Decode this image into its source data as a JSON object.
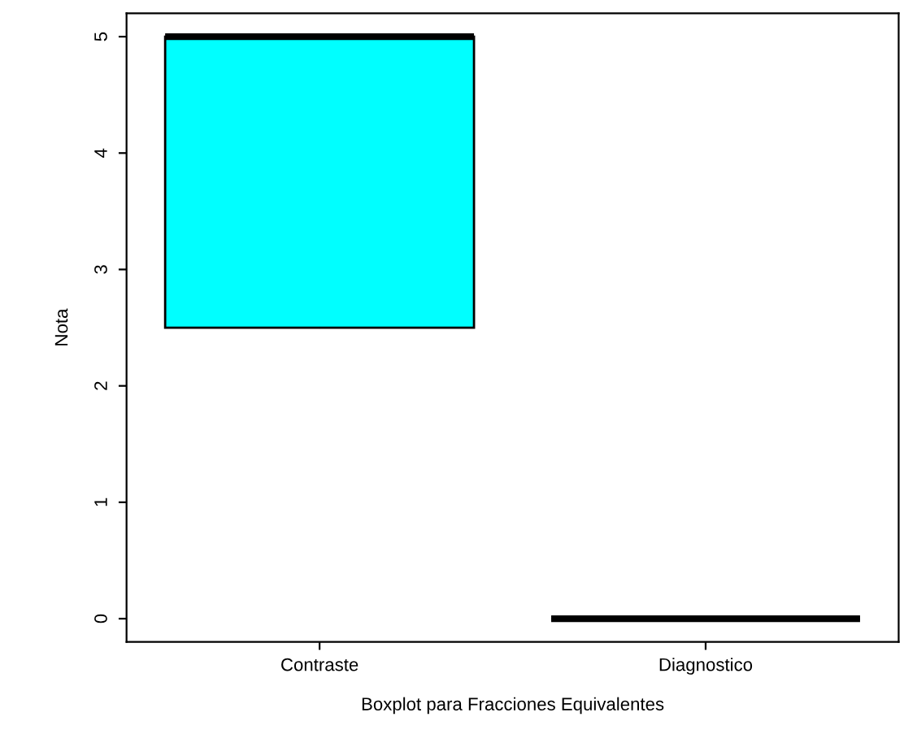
{
  "chart_data": {
    "type": "box",
    "categories": [
      "Contraste",
      "Diagnostico"
    ],
    "boxes": [
      {
        "low": 2.5,
        "q1": 2.5,
        "median": 5,
        "q3": 5,
        "high": 5
      },
      {
        "low": 0,
        "q1": 0,
        "median": 0,
        "q3": 0,
        "high": 0
      }
    ],
    "colors": [
      "#00ffff",
      "#000000"
    ],
    "xlabel": "Boxplot para Fracciones Equivalentes",
    "ylabel": "Nota",
    "ylim": [
      -0.2,
      5.2
    ],
    "yticks": [
      0,
      1,
      2,
      3,
      4,
      5
    ],
    "grid": false,
    "legend": false
  }
}
